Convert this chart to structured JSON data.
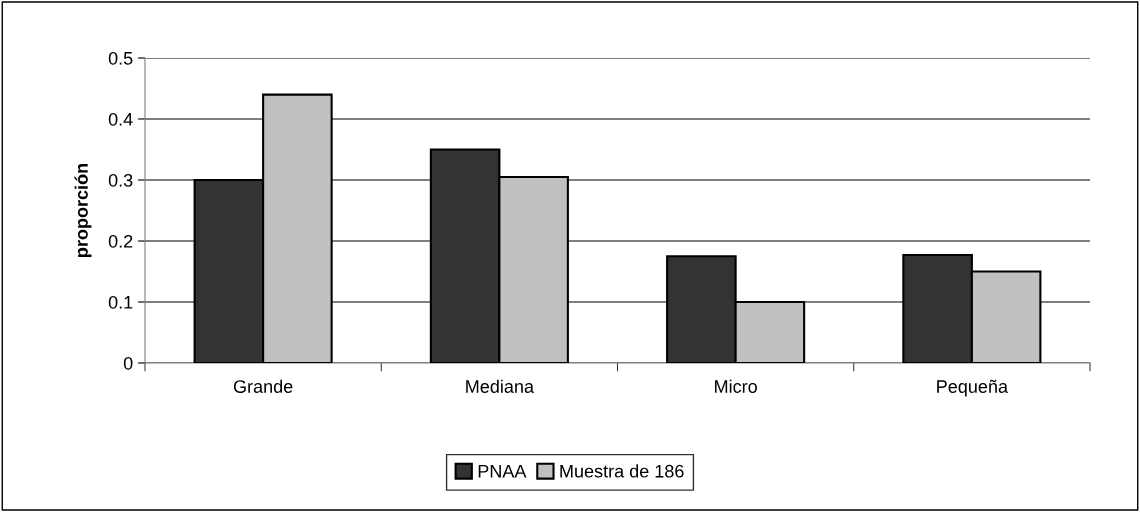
{
  "chart_data": {
    "type": "bar",
    "ylabel": "proporción",
    "categories": [
      "Grande",
      "Mediana",
      "Micro",
      "Pequeña"
    ],
    "series": [
      {
        "name": "PNAA",
        "color": "#333333",
        "values": [
          0.3,
          0.35,
          0.175,
          0.177
        ]
      },
      {
        "name": "Muestra de 186",
        "color": "#c0c0c0",
        "values": [
          0.44,
          0.305,
          0.1,
          0.15
        ]
      }
    ],
    "ylim": [
      0,
      0.5
    ],
    "yticks": [
      {
        "value": 0,
        "label": "0"
      },
      0.1,
      0.2,
      0.3,
      0.4,
      0.5
    ],
    "grid": "y",
    "legend": "bottom"
  }
}
